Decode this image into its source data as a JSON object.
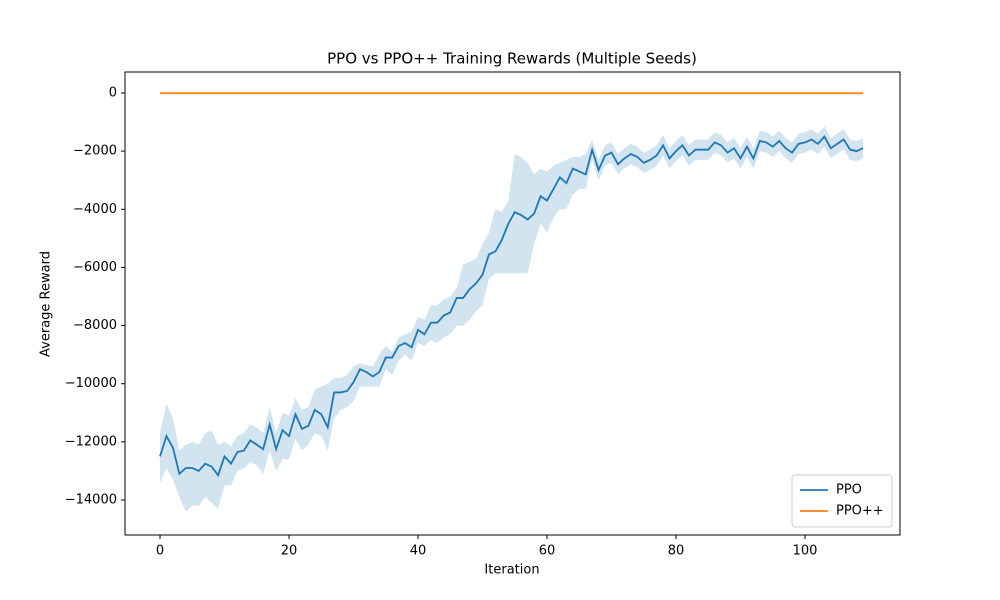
{
  "chart_data": {
    "type": "line",
    "title": "PPO vs PPO++ Training Rewards (Multiple Seeds)",
    "x_label": "Iteration",
    "y_label": "Average Reward",
    "x": [
      0,
      1,
      2,
      3,
      4,
      5,
      6,
      7,
      8,
      9,
      10,
      11,
      12,
      13,
      14,
      15,
      16,
      17,
      18,
      19,
      20,
      21,
      22,
      23,
      24,
      25,
      26,
      27,
      28,
      29,
      30,
      31,
      32,
      33,
      34,
      35,
      36,
      37,
      38,
      39,
      40,
      41,
      42,
      43,
      44,
      45,
      46,
      47,
      48,
      49,
      50,
      51,
      52,
      53,
      54,
      55,
      56,
      57,
      58,
      59,
      60,
      61,
      62,
      63,
      64,
      65,
      66,
      67,
      68,
      69,
      70,
      71,
      72,
      73,
      74,
      75,
      76,
      77,
      78,
      79,
      80,
      81,
      82,
      83,
      84,
      85,
      86,
      87,
      88,
      89,
      90,
      91,
      92,
      93,
      94,
      95,
      96,
      97,
      98,
      99,
      100,
      101,
      102,
      103,
      104,
      105,
      106,
      107,
      108,
      109
    ],
    "series": [
      {
        "name": "PPO",
        "color": "#1f77b4",
        "values": [
          -12500,
          -11800,
          -12200,
          -13100,
          -12900,
          -12900,
          -13000,
          -12750,
          -12850,
          -13150,
          -12500,
          -12750,
          -12350,
          -12300,
          -11950,
          -12100,
          -12250,
          -11400,
          -12250,
          -11600,
          -11800,
          -11050,
          -11550,
          -11450,
          -10900,
          -11050,
          -11500,
          -10300,
          -10300,
          -10250,
          -9950,
          -9500,
          -9600,
          -9750,
          -9600,
          -9100,
          -9100,
          -8700,
          -8600,
          -8750,
          -8150,
          -8300,
          -7900,
          -7900,
          -7650,
          -7550,
          -7050,
          -7050,
          -6750,
          -6550,
          -6250,
          -5550,
          -5450,
          -5050,
          -4500,
          -4100,
          -4200,
          -4350,
          -4150,
          -3550,
          -3700,
          -3300,
          -2900,
          -3100,
          -2600,
          -2700,
          -2800,
          -1950,
          -2650,
          -2150,
          -2050,
          -2450,
          -2250,
          -2100,
          -2200,
          -2400,
          -2300,
          -2150,
          -1800,
          -2250,
          -2000,
          -1800,
          -2150,
          -1950,
          -1950,
          -1950,
          -1700,
          -1800,
          -2050,
          -1900,
          -2250,
          -1850,
          -2250,
          -1650,
          -1700,
          -1850,
          -1650,
          -1900,
          -2050,
          -1750,
          -1700,
          -1600,
          -1750,
          -1500,
          -1900,
          -1750,
          -1600,
          -1950,
          -2000,
          -1900
        ],
        "upper": [
          -11700,
          -10700,
          -11200,
          -12300,
          -12100,
          -12000,
          -12100,
          -11700,
          -11600,
          -12100,
          -12000,
          -12150,
          -11800,
          -11700,
          -11400,
          -11500,
          -11700,
          -10800,
          -11700,
          -11000,
          -11100,
          -10500,
          -10900,
          -10800,
          -10200,
          -10100,
          -10000,
          -9800,
          -9800,
          -9700,
          -9400,
          -9300,
          -9350,
          -9400,
          -9000,
          -8700,
          -8900,
          -8400,
          -8300,
          -8200,
          -7700,
          -7800,
          -7300,
          -7300,
          -7100,
          -7000,
          -6700,
          -5900,
          -5800,
          -5700,
          -5200,
          -4800,
          -4000,
          -4100,
          -3700,
          -2100,
          -2200,
          -2400,
          -2800,
          -2600,
          -2700,
          -2500,
          -2400,
          -2300,
          -2200,
          -2200,
          -2100,
          -1600,
          -2300,
          -1800,
          -1700,
          -2100,
          -1900,
          -1750,
          -1850,
          -2050,
          -1950,
          -1800,
          -1450,
          -1900,
          -1650,
          -1450,
          -1800,
          -1600,
          -1600,
          -1600,
          -1350,
          -1450,
          -1700,
          -1550,
          -1900,
          -1500,
          -1900,
          -1300,
          -1350,
          -1500,
          -1300,
          -1550,
          -1700,
          -1400,
          -1350,
          -1250,
          -1400,
          -1150,
          -1550,
          -1400,
          -1250,
          -1600,
          -1650,
          -1550
        ],
        "lower": [
          -13400,
          -12900,
          -13300,
          -13900,
          -14400,
          -14200,
          -14200,
          -13900,
          -14100,
          -14300,
          -13500,
          -13500,
          -13000,
          -12900,
          -12700,
          -12800,
          -13100,
          -12300,
          -13000,
          -12600,
          -12600,
          -11900,
          -12300,
          -12100,
          -11700,
          -11800,
          -12300,
          -11200,
          -10900,
          -10800,
          -10600,
          -10100,
          -10100,
          -10100,
          -10100,
          -9500,
          -9700,
          -9200,
          -9000,
          -9200,
          -8600,
          -8700,
          -8500,
          -8600,
          -8400,
          -8300,
          -8000,
          -8000,
          -7800,
          -7500,
          -7300,
          -6400,
          -6200,
          -6200,
          -6200,
          -6200,
          -6200,
          -6200,
          -5200,
          -4500,
          -4800,
          -4300,
          -4000,
          -4000,
          -3500,
          -3300,
          -3300,
          -2300,
          -3000,
          -2500,
          -2400,
          -2800,
          -2600,
          -2450,
          -2550,
          -2750,
          -2650,
          -2500,
          -2150,
          -2600,
          -2350,
          -2150,
          -2500,
          -2300,
          -2300,
          -2300,
          -2050,
          -2150,
          -2400,
          -2250,
          -2600,
          -2200,
          -2600,
          -2000,
          -2050,
          -2200,
          -2000,
          -2250,
          -2400,
          -2100,
          -2050,
          -1950,
          -2100,
          -1850,
          -2250,
          -2100,
          -1950,
          -2300,
          -2350,
          -2250
        ]
      },
      {
        "name": "PPO++",
        "color": "#ff7f0e",
        "values": [
          -10,
          -10,
          -10,
          -10,
          -10,
          -10,
          -10,
          -10,
          -10,
          -10,
          -10,
          -10,
          -10,
          -10,
          -10,
          -10,
          -10,
          -10,
          -10,
          -10,
          -10,
          -10,
          -10,
          -10,
          -10,
          -10,
          -10,
          -10,
          -10,
          -10,
          -10,
          -10,
          -10,
          -10,
          -10,
          -10,
          -10,
          -10,
          -10,
          -10,
          -10,
          -10,
          -10,
          -10,
          -10,
          -10,
          -10,
          -10,
          -10,
          -10,
          -10,
          -10,
          -10,
          -10,
          -10,
          -10,
          -10,
          -10,
          -10,
          -10,
          -10,
          -10,
          -10,
          -10,
          -10,
          -10,
          -10,
          -10,
          -10,
          -10,
          -10,
          -10,
          -10,
          -10,
          -10,
          -10,
          -10,
          -10,
          -10,
          -10,
          -10,
          -10,
          -10,
          -10,
          -10,
          -10,
          -10,
          -10,
          -10,
          -10,
          -10,
          -10,
          -10,
          -10,
          -10,
          -10,
          -10,
          -10,
          -10,
          -10,
          -10,
          -10,
          -10,
          -10,
          -10,
          -10,
          -10,
          -10,
          -10,
          -10
        ]
      }
    ],
    "band_opacity": 0.2,
    "xlim": [
      -5.43,
      114.73
    ],
    "ylim": [
      -15204,
      722
    ],
    "xticks": [
      0,
      20,
      40,
      60,
      80,
      100
    ],
    "yticks": [
      {
        "value": -14000,
        "label": "−14000"
      },
      {
        "value": -12000,
        "label": "−12000"
      },
      {
        "value": -10000,
        "label": "−10000"
      },
      {
        "value": -8000,
        "label": "−8000"
      },
      {
        "value": -6000,
        "label": "−6000"
      },
      {
        "value": -4000,
        "label": "−4000"
      },
      {
        "value": -2000,
        "label": "−2000"
      },
      0
    ],
    "legend": "lower right",
    "grid": false
  }
}
